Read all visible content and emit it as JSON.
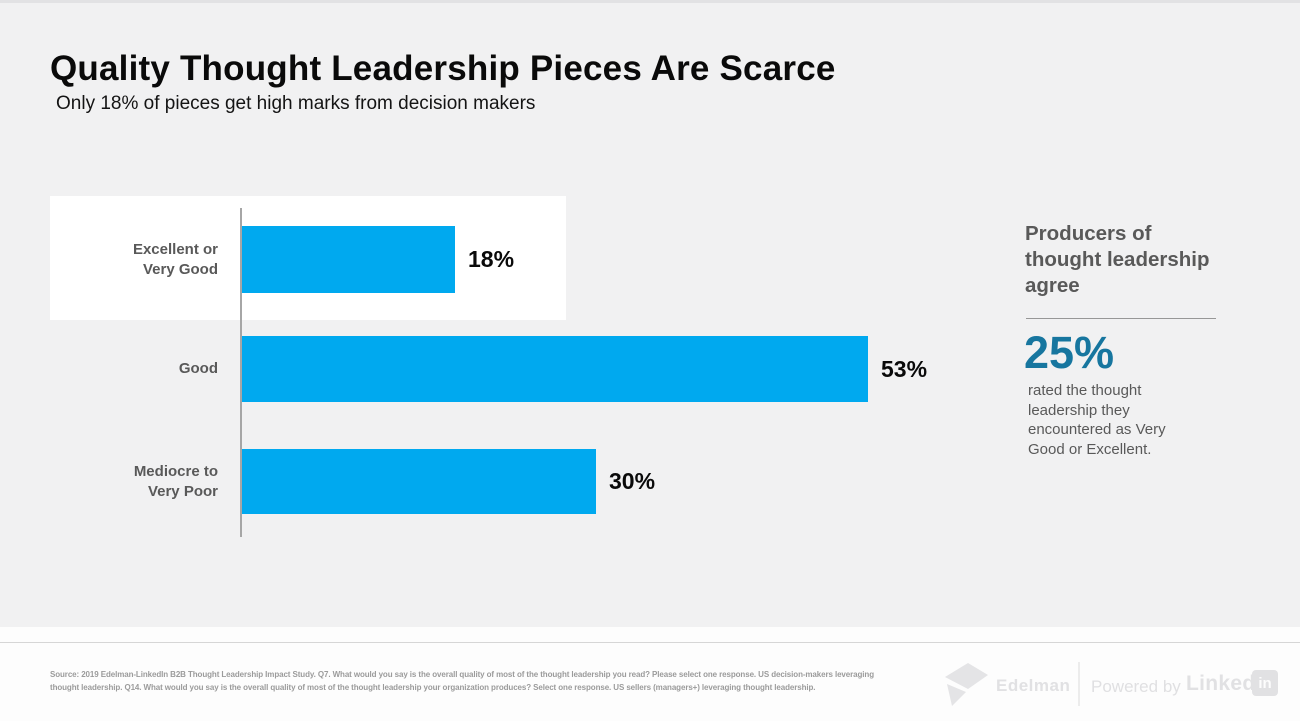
{
  "slide": {
    "title": "Quality Thought Leadership Pieces Are Scarce",
    "subtitle": "Only 18% of pieces get high marks from decision makers"
  },
  "chart_data": {
    "type": "bar",
    "orientation": "horizontal",
    "title": "Quality Thought Leadership Pieces Are Scarce",
    "subtitle": "Only 18% of pieces get high marks from decision makers",
    "categories": [
      "Excellent or Very Good",
      "Good",
      "Mediocre to Very Poor"
    ],
    "values": [
      18,
      53,
      30
    ],
    "value_labels": [
      "18%",
      "53%",
      "30%"
    ],
    "xlim": [
      0,
      60
    ],
    "grid": false,
    "legend": false,
    "bar_color": "#00a9ef",
    "highlighted_category_index": 0,
    "highlight_style": "white box behind first row"
  },
  "side_panel": {
    "heading": "Producers of thought leadership agree",
    "stat_value": "25%",
    "stat_color": "#17769f",
    "stat_description": "rated the thought leadership they encountered as Very Good or Excellent."
  },
  "footer": {
    "source_line1": "Source: 2019 Edelman-LinkedIn B2B Thought Leadership Impact Study. Q7. What would you say is the overall quality of most of the thought leadership you read? Please select one response. US decision-makers leveraging",
    "source_line2": "thought leadership. Q14. What would you say is the overall quality of most of the thought leadership your organization produces? Select one response. US sellers (managers+) leveraging thought leadership.",
    "edelman_label": "Edelman",
    "powered_by_label": "Powered by",
    "linkedin_word": "Linked",
    "linkedin_badge": "in"
  }
}
